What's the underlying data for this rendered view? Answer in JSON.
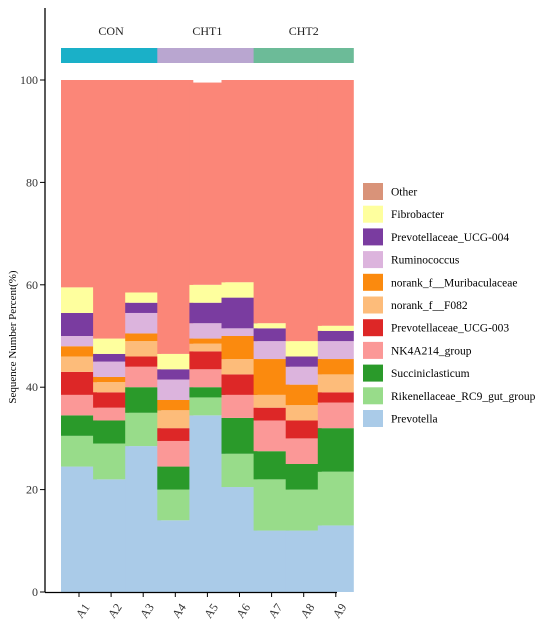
{
  "chart_data": {
    "type": "bar",
    "stacked": true,
    "ylabel": "Sequence Number Percent(%)",
    "xlabel": "",
    "ylim": [
      0,
      100
    ],
    "y_ticks": [
      0,
      20,
      40,
      60,
      80,
      100
    ],
    "grid": false,
    "legend_position": "right",
    "categories": [
      "A1",
      "A2",
      "A3",
      "A4",
      "A5",
      "A6",
      "A7",
      "A8",
      "A9"
    ],
    "groups": [
      {
        "name": "CON",
        "members": [
          "A1",
          "A2",
          "A3"
        ],
        "color": "#1ab0c8"
      },
      {
        "name": "CHT1",
        "members": [
          "A4",
          "A5",
          "A6"
        ],
        "color": "#b9a6d0"
      },
      {
        "name": "CHT2",
        "members": [
          "A7",
          "A8",
          "A9"
        ],
        "color": "#6cbb98"
      }
    ],
    "series": [
      {
        "name": "Prevotella",
        "color": "#aacbe8",
        "values": [
          24.5,
          22,
          28.5,
          14,
          34.5,
          20.5,
          12,
          12,
          13
        ]
      },
      {
        "name": "Rikenellaceae_RC9_gut_group",
        "color": "#98dc8a",
        "values": [
          6,
          7,
          6.5,
          6,
          3.5,
          6.5,
          10,
          8,
          10.5
        ]
      },
      {
        "name": "Succiniclasticum",
        "color": "#2a9a2a",
        "values": [
          4,
          4.5,
          5,
          4.5,
          2,
          7,
          5.5,
          5,
          8.5
        ]
      },
      {
        "name": "NK4A214_group",
        "color": "#fb9897",
        "values": [
          4,
          2.5,
          4,
          5,
          3.5,
          4.5,
          6,
          5,
          5
        ]
      },
      {
        "name": "Prevotellaceae_UCG-003",
        "color": "#dd2727",
        "values": [
          4.5,
          3,
          2,
          2.5,
          3.5,
          4,
          2.5,
          3.5,
          2
        ]
      },
      {
        "name": "norank_f__F082",
        "color": "#fdbc7a",
        "values": [
          3,
          2,
          3,
          3.5,
          1.5,
          3,
          2.5,
          3,
          3.5
        ]
      },
      {
        "name": "norank_f__Muribaculaceae",
        "color": "#fb8a0e",
        "values": [
          2,
          1,
          1.5,
          2,
          1,
          4.5,
          7,
          4,
          3
        ]
      },
      {
        "name": "Ruminococcus",
        "color": "#dcb4dd",
        "values": [
          2,
          3,
          4,
          4,
          3,
          1.5,
          3.5,
          3.5,
          3.5
        ]
      },
      {
        "name": "Prevotellaceae_UCG-004",
        "color": "#7a3ca0",
        "values": [
          4.5,
          1.5,
          2,
          2,
          4,
          6,
          2.5,
          2,
          2
        ]
      },
      {
        "name": "Fibrobacter",
        "color": "#feff9e",
        "values": [
          5,
          3,
          2,
          3,
          3.5,
          3,
          1,
          3,
          1
        ]
      },
      {
        "name": "Other",
        "color": "#fb8678",
        "values": [
          40.5,
          50.5,
          41.5,
          53.5,
          39.5,
          39.5,
          47.5,
          51,
          48
        ]
      }
    ],
    "legend_order": [
      "Other",
      "Fibrobacter",
      "Prevotellaceae_UCG-004",
      "Ruminococcus",
      "norank_f__Muribaculaceae",
      "norank_f__F082",
      "Prevotellaceae_UCG-003",
      "NK4A214_group",
      "Succiniclasticum",
      "Rikenellaceae_RC9_gut_group",
      "Prevotella"
    ],
    "legend_colors": {
      "Other": "#d99379"
    }
  }
}
